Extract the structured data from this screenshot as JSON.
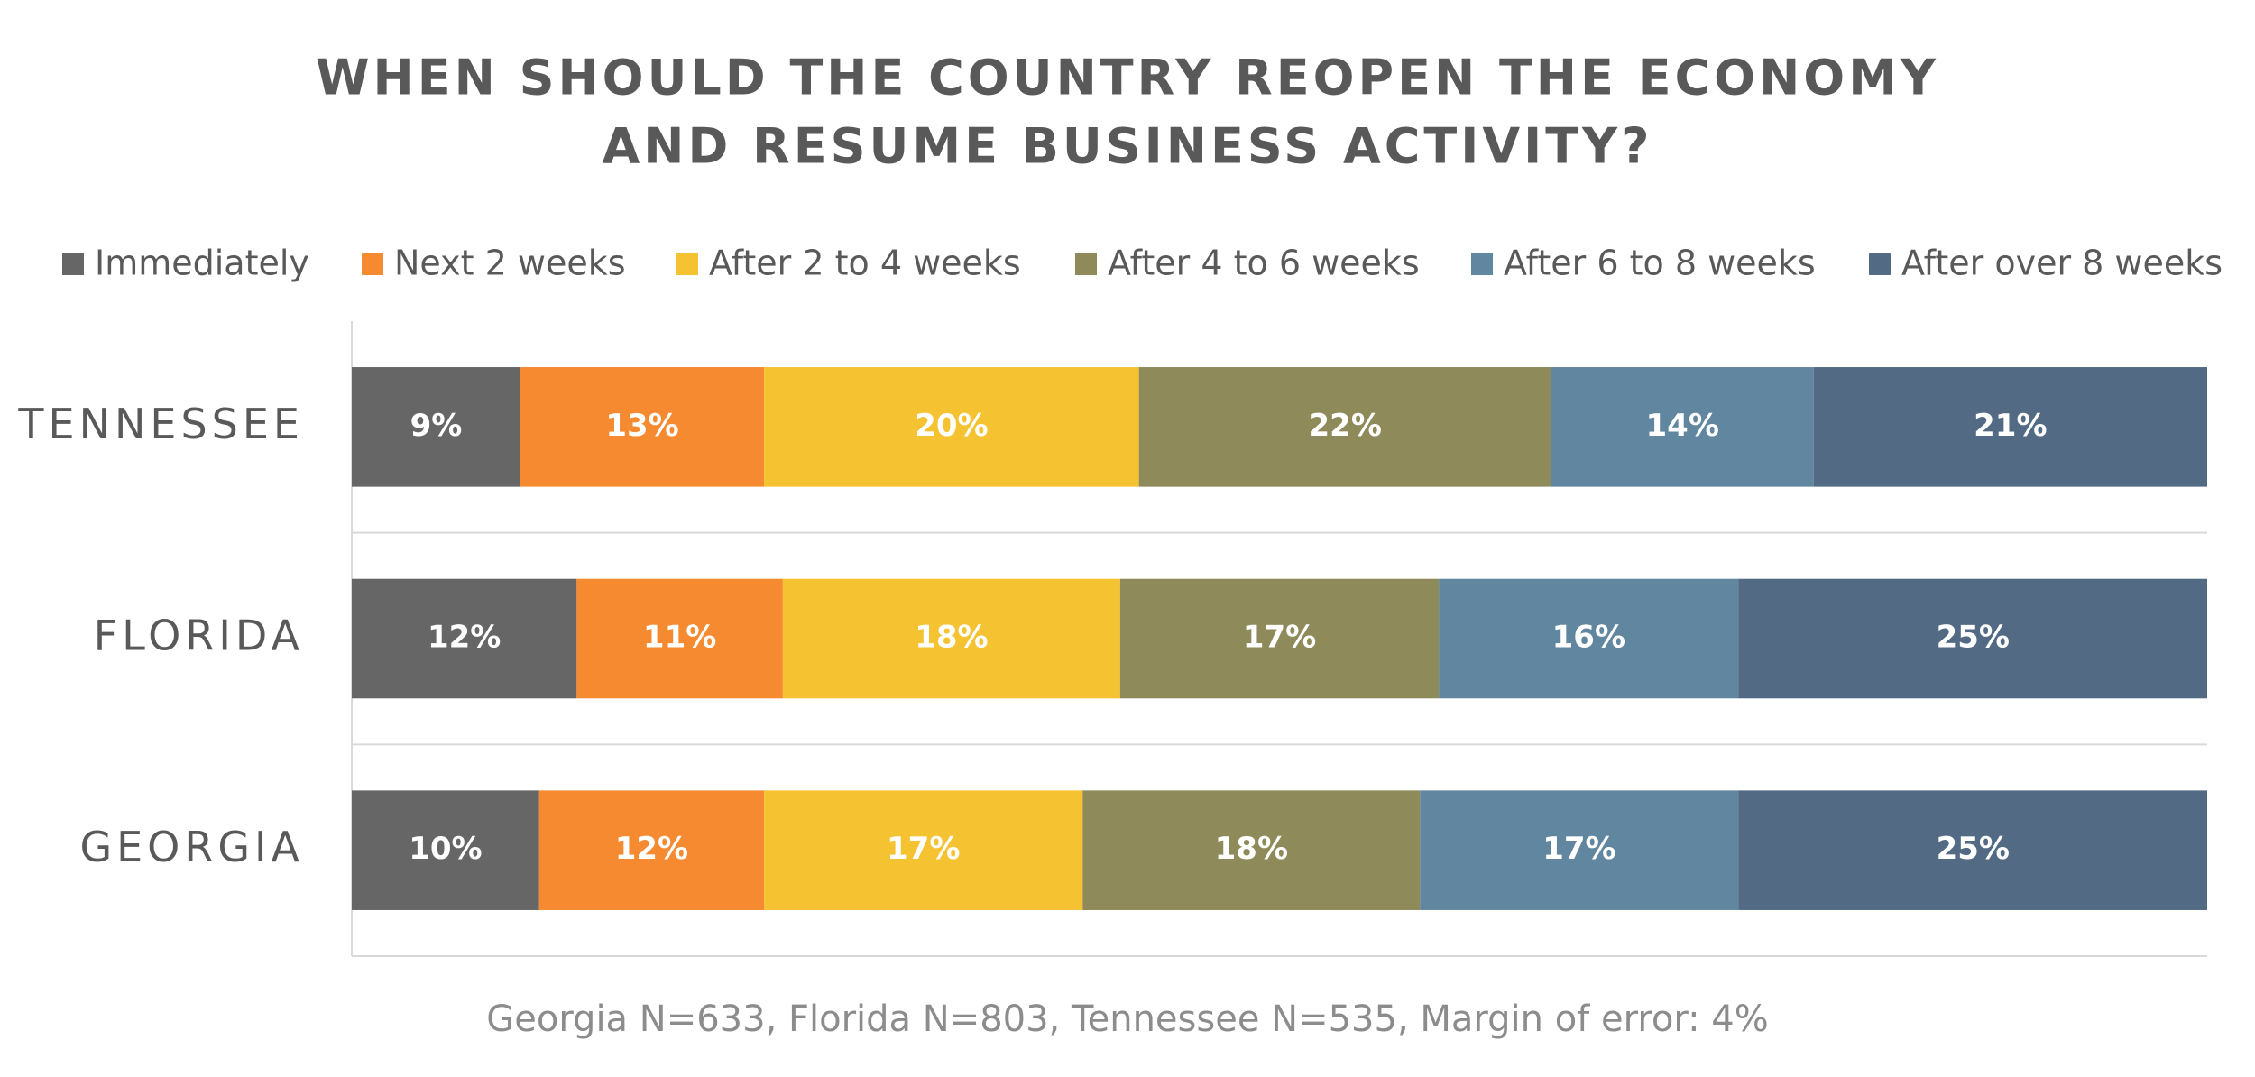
{
  "chart_data": {
    "type": "bar",
    "orientation": "horizontal",
    "title": [
      "WHEN SHOULD THE COUNTRY REOPEN THE ECONOMY",
      "AND RESUME BUSINESS ACTIVITY?"
    ],
    "categories": [
      "TENNESSEE",
      "FLORIDA",
      "GEORGIA"
    ],
    "series": [
      {
        "name": "Immediately",
        "color": "#666666",
        "values": [
          9,
          12,
          10
        ],
        "value_labels": [
          "9%",
          "12%",
          "10%"
        ]
      },
      {
        "name": "Next 2 weeks",
        "color": "#f58a31",
        "values": [
          13,
          11,
          12
        ],
        "value_labels": [
          "13%",
          "11%",
          "12%"
        ]
      },
      {
        "name": "After 2 to 4 weeks",
        "color": "#f5c232",
        "values": [
          20,
          18,
          17
        ],
        "value_labels": [
          "20%",
          "18%",
          "17%"
        ]
      },
      {
        "name": "After 4 to 6 weeks",
        "color": "#8f8a5a",
        "values": [
          22,
          17,
          18
        ],
        "value_labels": [
          "22%",
          "17%",
          "18%"
        ]
      },
      {
        "name": "After 6 to 8 weeks",
        "color": "#6186a0",
        "values": [
          14,
          16,
          17
        ],
        "value_labels": [
          "14%",
          "16%",
          "17%"
        ]
      },
      {
        "name": "After over 8 weeks",
        "color": "#536a84",
        "values": [
          21,
          25,
          25
        ],
        "value_labels": [
          "21%",
          "25%",
          "25%"
        ]
      }
    ],
    "note": "Georgia N=633, Florida N=803, Tennessee N=535,  Margin of error: 4%"
  }
}
